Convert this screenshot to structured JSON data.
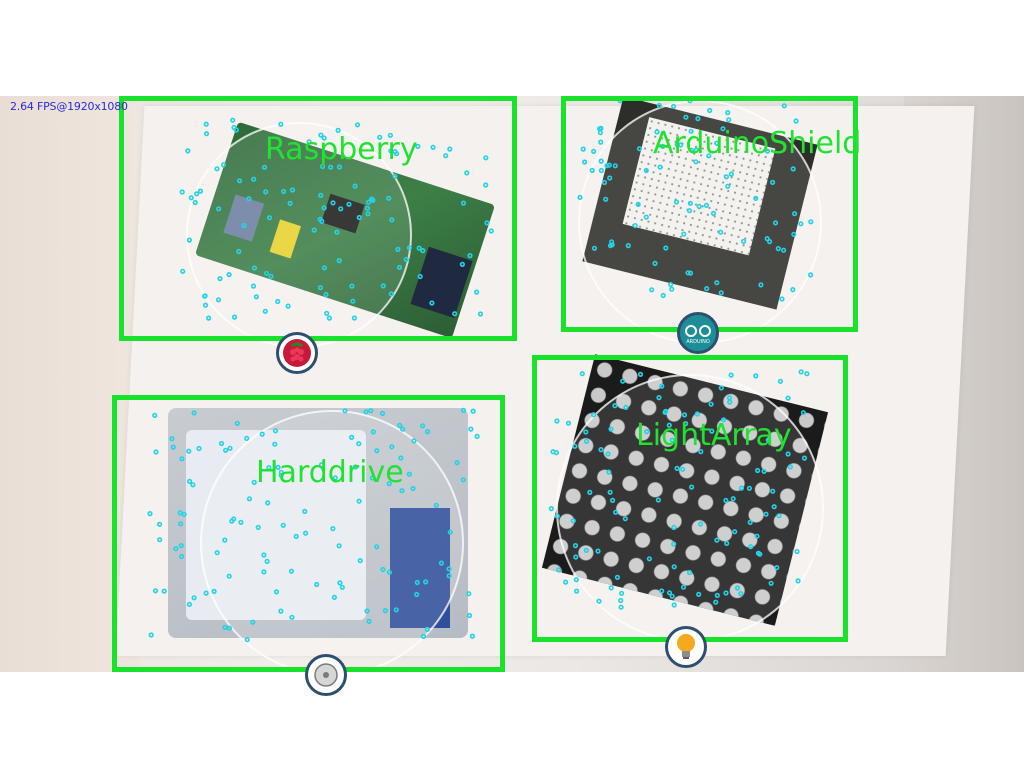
{
  "status": {
    "fps_text": "2.64 FPS@1920x1080"
  },
  "detections": [
    {
      "label": "Raspberry",
      "icon": "raspberry-icon"
    },
    {
      "label": "ArduinoShield",
      "icon": "arduino-icon",
      "icon_text": "ARDUINO"
    },
    {
      "label": "Harddrive",
      "icon": "harddrive-icon"
    },
    {
      "label": "LightArray",
      "icon": "lightbulb-icon"
    }
  ],
  "colors": {
    "box": "#19e22a",
    "keypoint": "#22d3e8",
    "badge_ring": "#2f4f6e"
  }
}
